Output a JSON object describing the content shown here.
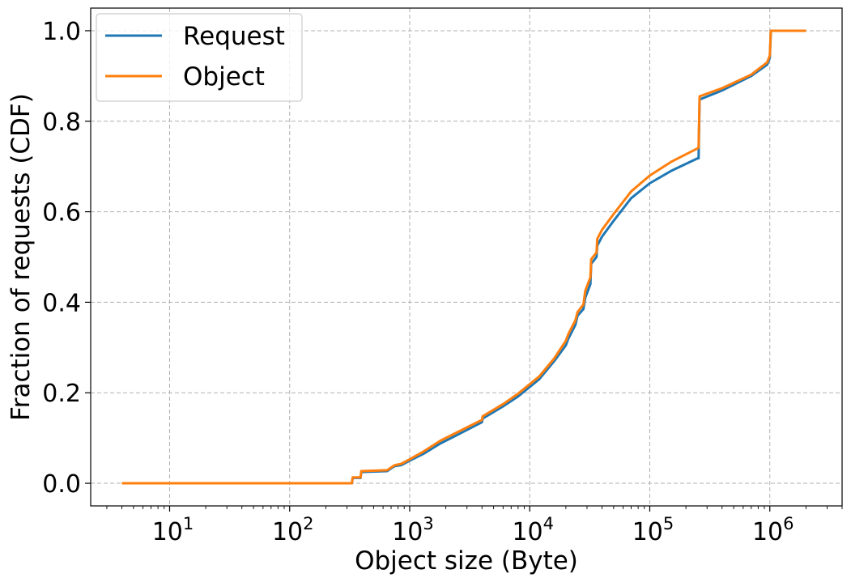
{
  "chart_data": {
    "type": "line",
    "xlabel": "Object size (Byte)",
    "ylabel": "Fraction of requests (CDF)",
    "xscale": "log",
    "xlim": [
      2.2,
      4000000
    ],
    "ylim": [
      -0.05,
      1.05
    ],
    "grid": true,
    "legend_position": "top-left",
    "x_ticks": [
      {
        "value": 10,
        "base": "10",
        "exp": "1"
      },
      {
        "value": 100,
        "base": "10",
        "exp": "2"
      },
      {
        "value": 1000,
        "base": "10",
        "exp": "3"
      },
      {
        "value": 10000,
        "base": "10",
        "exp": "4"
      },
      {
        "value": 100000,
        "base": "10",
        "exp": "5"
      },
      {
        "value": 1000000,
        "base": "10",
        "exp": "6"
      }
    ],
    "y_ticks": [
      {
        "value": 0.0,
        "label": "0.0"
      },
      {
        "value": 0.2,
        "label": "0.2"
      },
      {
        "value": 0.4,
        "label": "0.4"
      },
      {
        "value": 0.6,
        "label": "0.6"
      },
      {
        "value": 0.8,
        "label": "0.8"
      },
      {
        "value": 1.0,
        "label": "1.0"
      }
    ],
    "series": [
      {
        "name": "Request",
        "color": "#1f77b4",
        "points": [
          [
            4,
            0.0
          ],
          [
            330,
            0.0
          ],
          [
            335,
            0.012
          ],
          [
            390,
            0.012
          ],
          [
            395,
            0.025
          ],
          [
            650,
            0.027
          ],
          [
            700,
            0.033
          ],
          [
            750,
            0.038
          ],
          [
            850,
            0.04
          ],
          [
            1000,
            0.05
          ],
          [
            1300,
            0.065
          ],
          [
            1800,
            0.088
          ],
          [
            2500,
            0.107
          ],
          [
            4000,
            0.135
          ],
          [
            4050,
            0.143
          ],
          [
            6000,
            0.17
          ],
          [
            8000,
            0.192
          ],
          [
            12000,
            0.23
          ],
          [
            16000,
            0.27
          ],
          [
            20000,
            0.305
          ],
          [
            21000,
            0.32
          ],
          [
            24000,
            0.35
          ],
          [
            25000,
            0.37
          ],
          [
            28000,
            0.385
          ],
          [
            29000,
            0.41
          ],
          [
            32000,
            0.44
          ],
          [
            32500,
            0.485
          ],
          [
            36000,
            0.5
          ],
          [
            36500,
            0.525
          ],
          [
            40000,
            0.545
          ],
          [
            50000,
            0.58
          ],
          [
            70000,
            0.63
          ],
          [
            100000,
            0.663
          ],
          [
            150000,
            0.69
          ],
          [
            250000,
            0.718
          ],
          [
            255000,
            0.718
          ],
          [
            260000,
            0.848
          ],
          [
            400000,
            0.868
          ],
          [
            700000,
            0.9
          ],
          [
            950000,
            0.925
          ],
          [
            1000000,
            0.94
          ],
          [
            1020000,
            1.0
          ],
          [
            2000000,
            1.0
          ]
        ]
      },
      {
        "name": "Object",
        "color": "#ff7f0e",
        "points": [
          [
            4,
            0.0
          ],
          [
            330,
            0.0
          ],
          [
            335,
            0.013
          ],
          [
            390,
            0.013
          ],
          [
            395,
            0.027
          ],
          [
            650,
            0.029
          ],
          [
            700,
            0.035
          ],
          [
            750,
            0.04
          ],
          [
            850,
            0.043
          ],
          [
            1000,
            0.053
          ],
          [
            1300,
            0.07
          ],
          [
            1800,
            0.094
          ],
          [
            2500,
            0.113
          ],
          [
            4000,
            0.14
          ],
          [
            4050,
            0.148
          ],
          [
            6000,
            0.175
          ],
          [
            8000,
            0.198
          ],
          [
            12000,
            0.236
          ],
          [
            16000,
            0.276
          ],
          [
            20000,
            0.315
          ],
          [
            21000,
            0.33
          ],
          [
            24000,
            0.36
          ],
          [
            25000,
            0.378
          ],
          [
            28000,
            0.395
          ],
          [
            29000,
            0.425
          ],
          [
            32000,
            0.455
          ],
          [
            32500,
            0.495
          ],
          [
            36000,
            0.51
          ],
          [
            36500,
            0.54
          ],
          [
            40000,
            0.56
          ],
          [
            50000,
            0.595
          ],
          [
            70000,
            0.645
          ],
          [
            100000,
            0.68
          ],
          [
            150000,
            0.71
          ],
          [
            250000,
            0.74
          ],
          [
            255000,
            0.742
          ],
          [
            260000,
            0.855
          ],
          [
            400000,
            0.873
          ],
          [
            700000,
            0.903
          ],
          [
            950000,
            0.93
          ],
          [
            1000000,
            0.945
          ],
          [
            1020000,
            1.0
          ],
          [
            2000000,
            1.0
          ]
        ]
      }
    ]
  }
}
